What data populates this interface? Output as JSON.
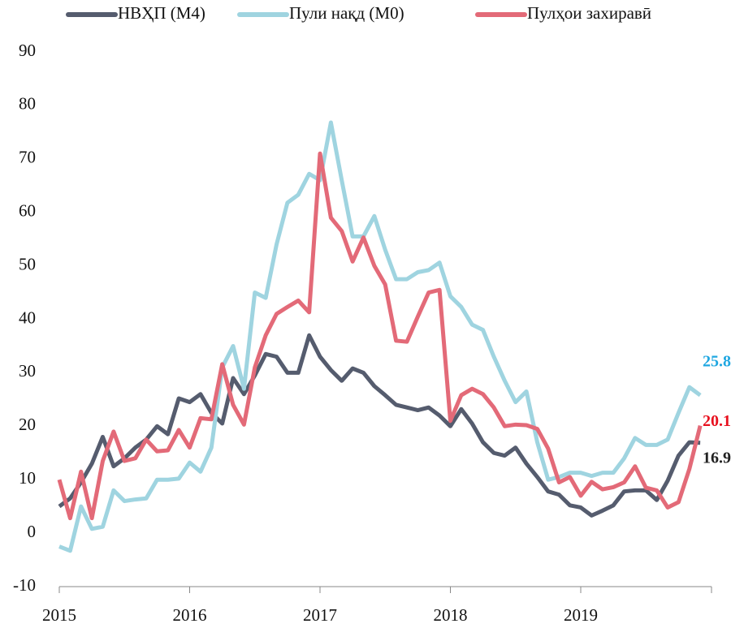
{
  "chart_data": {
    "type": "line",
    "categories": [
      "2015",
      null,
      null,
      null,
      null,
      null,
      null,
      null,
      null,
      null,
      null,
      null,
      "2016",
      null,
      null,
      null,
      null,
      null,
      null,
      null,
      null,
      null,
      null,
      null,
      "2017",
      null,
      null,
      null,
      null,
      null,
      null,
      null,
      null,
      null,
      null,
      null,
      "2018",
      null,
      null,
      null,
      null,
      null,
      null,
      null,
      null,
      null,
      null,
      null,
      "2019",
      null,
      null,
      null,
      null,
      null,
      null,
      null,
      null,
      null,
      null,
      null
    ],
    "ylim": [
      -10,
      90
    ],
    "yticks": [
      -10,
      0,
      10,
      20,
      30,
      40,
      50,
      60,
      70,
      80,
      90
    ],
    "grid": false,
    "legend": "top",
    "series": [
      {
        "name": "НВҲП (М4)",
        "color": "#555c6e",
        "label_color": "#222222",
        "values": [
          5,
          6.5,
          9.5,
          13,
          18,
          12.5,
          14,
          16,
          17.5,
          20,
          18.5,
          25.2,
          24.5,
          26,
          22.5,
          20.5,
          29,
          26,
          29.5,
          33.5,
          33,
          30,
          30,
          37,
          33,
          30.5,
          28.5,
          30.8,
          30,
          27.5,
          25.8,
          24,
          23.5,
          23,
          23.5,
          22,
          20,
          23.2,
          20.5,
          17,
          15,
          14.5,
          16,
          13,
          10.5,
          7.8,
          7.2,
          5.2,
          4.8,
          3.3,
          4.2,
          5.2,
          7.8,
          8,
          8,
          6.2,
          9.8,
          14.5,
          17,
          16.9
        ]
      },
      {
        "name": "Пули нақд (М0)",
        "color": "#9fd4e0",
        "label_color": "#1fa7e1",
        "values": [
          -2.5,
          -3.3,
          5,
          0.8,
          1.2,
          8,
          6,
          6.3,
          6.5,
          10,
          10,
          10.2,
          13.2,
          11.5,
          16,
          31,
          35,
          27,
          45,
          44,
          54,
          61.8,
          63.3,
          67.2,
          66,
          76.8,
          66,
          55.5,
          55.5,
          59.3,
          53,
          47.5,
          47.5,
          48.8,
          49.2,
          50.6,
          44.3,
          42.3,
          39,
          38,
          33,
          28.5,
          24.5,
          26.5,
          17,
          10,
          10.5,
          11.3,
          11.3,
          10.7,
          11.3,
          11.3,
          14,
          17.8,
          16.5,
          16.5,
          17.5,
          22.5,
          27.3,
          25.8
        ]
      },
      {
        "name": "Пулҳои захиравӣ",
        "color": "#e36a78",
        "label_color": "#e8101e",
        "values": [
          10,
          2.8,
          11.5,
          2.8,
          13.5,
          19,
          13.5,
          14,
          17.5,
          15.3,
          15.5,
          19.3,
          16,
          21.5,
          21.3,
          31.6,
          24,
          20.3,
          31,
          37,
          41,
          42.3,
          43.5,
          41.3,
          71,
          59,
          56.5,
          50.8,
          55.3,
          50,
          46.5,
          36,
          35.8,
          40.5,
          45,
          45.5,
          21,
          25.8,
          27,
          26,
          23.5,
          20,
          20.3,
          20.2,
          19.5,
          15.8,
          9.5,
          10.5,
          7,
          9.6,
          8.2,
          8.6,
          9.5,
          12.5,
          8.5,
          8,
          4.8,
          5.8,
          12,
          20.1
        ]
      }
    ]
  }
}
